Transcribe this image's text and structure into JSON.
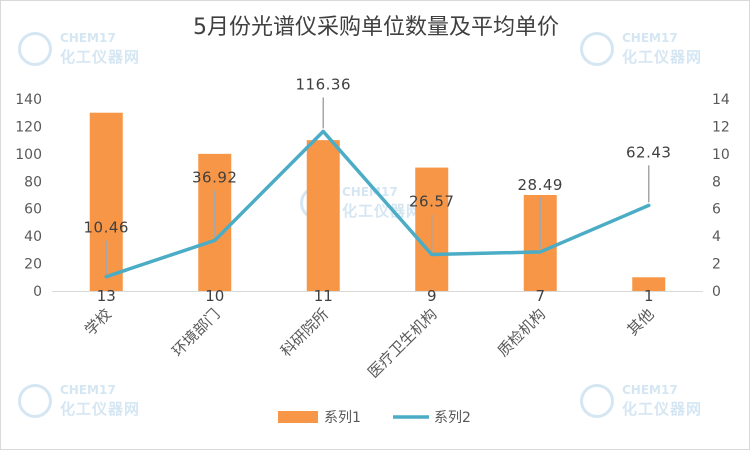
{
  "title": "5月份光谱仪采购单位数量及平均单价",
  "watermark": {
    "brand": "CHEM17",
    "sub": "化工仪器网"
  },
  "chart_data": {
    "type": "bar",
    "title": "5月份光谱仪采购单位数量及平均单价",
    "categories": [
      "学校",
      "环境部门",
      "科研院所",
      "医疗卫生机构",
      "质检机构",
      "其他"
    ],
    "series": [
      {
        "name": "系列1",
        "type": "bar",
        "axis": "left",
        "values": [
          13,
          10,
          11,
          9,
          7,
          1
        ],
        "value_labels": [
          "13",
          "10",
          "11",
          "9",
          "7",
          "1"
        ],
        "plotted_heights": [
          130,
          100,
          110,
          90,
          70,
          10
        ]
      },
      {
        "name": "系列2",
        "type": "line",
        "axis": "right",
        "values": [
          10.46,
          36.92,
          116.36,
          26.57,
          28.49,
          62.43
        ],
        "value_labels": [
          "10.46",
          "36.92",
          "116.36",
          "26.57",
          "28.49",
          "62.43"
        ],
        "plotted_values": [
          1.046,
          3.692,
          11.636,
          2.657,
          2.849,
          6.243
        ]
      }
    ],
    "y_left": {
      "min": 0,
      "max": 140,
      "ticks": [
        "0",
        "20",
        "40",
        "60",
        "80",
        "100",
        "120",
        "140"
      ]
    },
    "y_right": {
      "min": 0,
      "max": 14,
      "ticks": [
        "0",
        "2",
        "4",
        "6",
        "8",
        "10",
        "12",
        "14"
      ]
    },
    "grid": false,
    "legend": {
      "position": "bottom",
      "entries": [
        "系列1",
        "系列2"
      ]
    },
    "colors": {
      "bar": "#f79646",
      "line": "#4bacc6",
      "axis_text": "#595959",
      "leader": "#a6a6a6"
    }
  }
}
